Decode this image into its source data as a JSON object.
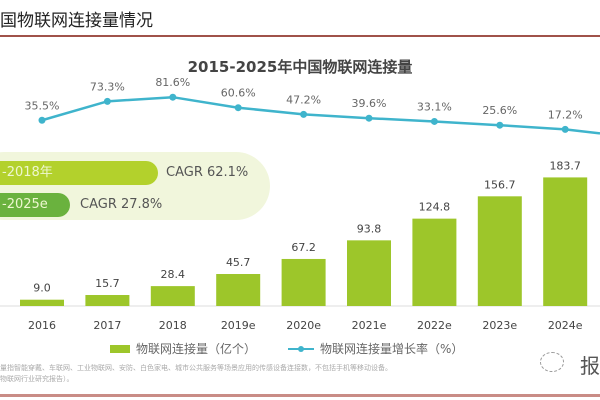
{
  "header": {
    "title": "国物联网连接量情况"
  },
  "chart_data": {
    "type": "bar",
    "title": "2015-2025年中国物联网连接量",
    "categories": [
      "2016",
      "2017",
      "2018",
      "2019e",
      "2020e",
      "2021e",
      "2022e",
      "2023e",
      "2024e"
    ],
    "series": [
      {
        "name": "物联网连接量（亿个）",
        "type": "bar",
        "color": "#9dc62a",
        "values": [
          9.0,
          15.7,
          28.4,
          45.7,
          67.2,
          93.8,
          124.8,
          156.7,
          183.7
        ]
      },
      {
        "name": "物联网连接量增长率（%）",
        "type": "line",
        "color": "#3fb4cc",
        "values": [
          35.5,
          73.3,
          81.6,
          60.6,
          47.2,
          39.6,
          33.1,
          25.6,
          17.2
        ]
      }
    ],
    "bar_labels": [
      "9.0",
      "15.7",
      "28.4",
      "45.7",
      "67.2",
      "93.8",
      "124.8",
      "156.7",
      "183.7"
    ],
    "line_labels": [
      "35.5%",
      "73.3%",
      "81.6%",
      "60.6%",
      "47.2%",
      "39.6%",
      "33.1%",
      "25.6%",
      "17.2%"
    ],
    "grid": false,
    "legend": "bottom",
    "annotations": [
      {
        "period": "-2018年",
        "text": "CAGR 62.1%",
        "color": "#b3d12c"
      },
      {
        "period": "-2025e",
        "text": "CAGR 27.8%",
        "color": "#6ab23e"
      }
    ]
  },
  "footnote": [
    "量指智能穿戴、车联网、工业物联网、安防、白色家电、城市公共服务等场景应用的传感设备连接数，不包括手机等移动设备。",
    "物联网行业研究报告）。"
  ],
  "watermark": "报"
}
